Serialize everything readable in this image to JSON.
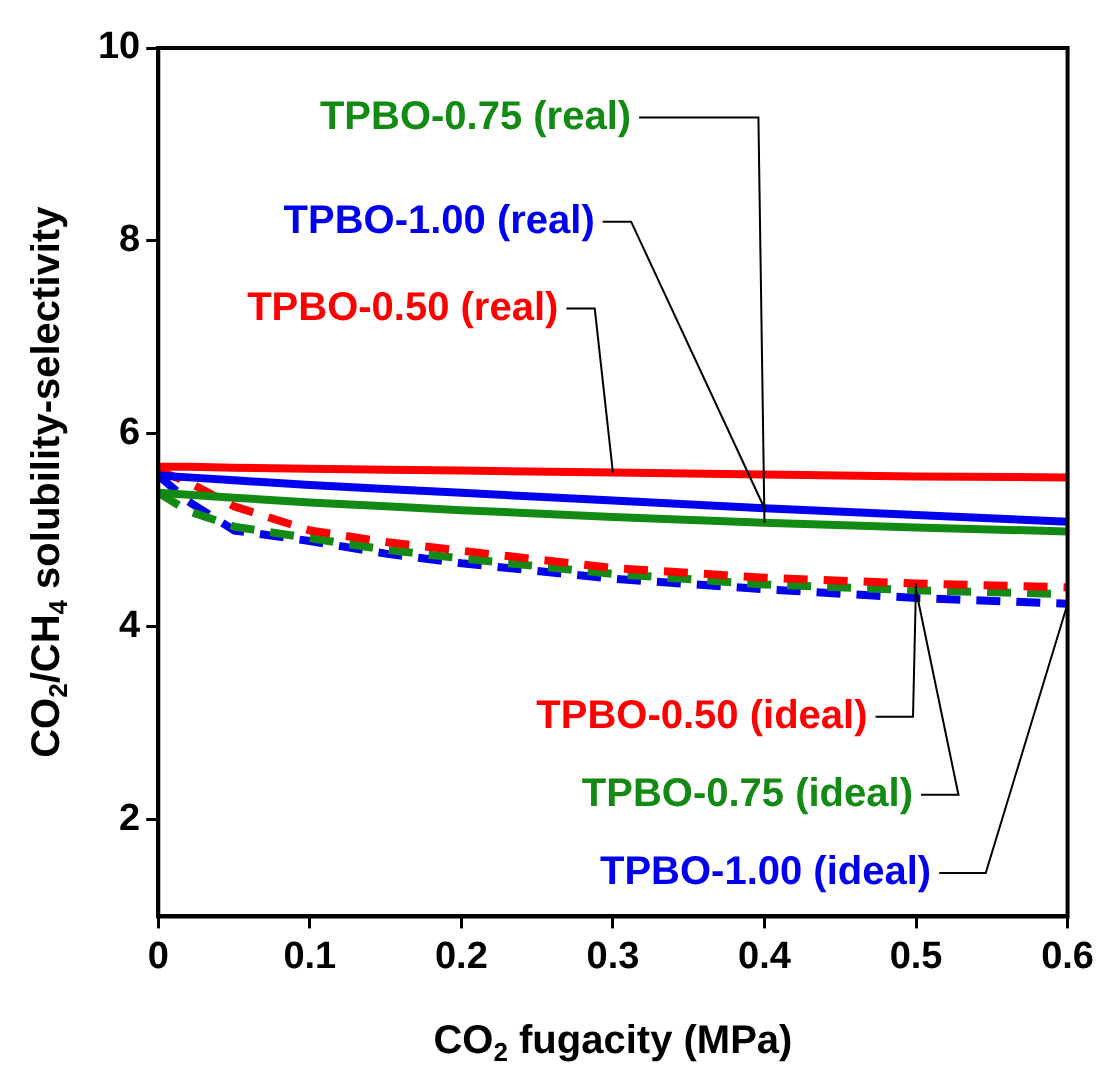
{
  "chart_data": {
    "type": "line",
    "xlabel": "CO$_{2}$ fugacity (MPa)",
    "ylabel": "CO$_{2}$/CH$_{4}$ solubility-selectivity",
    "x": [
      0,
      0.02,
      0.05,
      0.1,
      0.15,
      0.2,
      0.3,
      0.4,
      0.5,
      0.6
    ],
    "series": [
      {
        "name": "TPBO-0.75 (real)",
        "color": "#138a13",
        "line_style": "solid",
        "values": [
          5.39,
          5.37,
          5.34,
          5.29,
          5.25,
          5.21,
          5.14,
          5.08,
          5.03,
          4.99
        ]
      },
      {
        "name": "TPBO-1.00 (real)",
        "color": "#0000ee",
        "line_style": "solid",
        "values": [
          5.57,
          5.55,
          5.52,
          5.47,
          5.43,
          5.39,
          5.31,
          5.23,
          5.16,
          5.09
        ]
      },
      {
        "name": "TPBO-0.50 (real)",
        "color": "#ff0000",
        "line_style": "solid",
        "values": [
          5.66,
          5.66,
          5.65,
          5.64,
          5.63,
          5.62,
          5.6,
          5.58,
          5.56,
          5.55
        ]
      },
      {
        "name": "TPBO-0.50 (ideal)",
        "color": "#ff0000",
        "line_style": "dashed",
        "values": [
          5.62,
          5.5,
          5.25,
          5.0,
          4.88,
          4.79,
          4.61,
          4.51,
          4.45,
          4.41
        ]
      },
      {
        "name": "TPBO-0.75 (ideal)",
        "color": "#138a13",
        "line_style": "dashed",
        "values": [
          5.39,
          5.2,
          5.04,
          4.92,
          4.8,
          4.71,
          4.55,
          4.44,
          4.38,
          4.34
        ]
      },
      {
        "name": "TPBO-1.00 (ideal)",
        "color": "#0000ee",
        "line_style": "dashed",
        "values": [
          5.57,
          5.3,
          5.0,
          4.89,
          4.76,
          4.66,
          4.5,
          4.39,
          4.3,
          4.24
        ]
      }
    ],
    "xlim": [
      0,
      0.6
    ],
    "xticks": [
      0,
      0.1,
      0.2,
      0.3,
      0.4,
      0.5,
      0.6
    ],
    "ylim": [
      1,
      10
    ],
    "yticks": [
      2,
      4,
      6,
      8,
      10
    ],
    "grid": false,
    "legend": false,
    "marker": "none"
  }
}
